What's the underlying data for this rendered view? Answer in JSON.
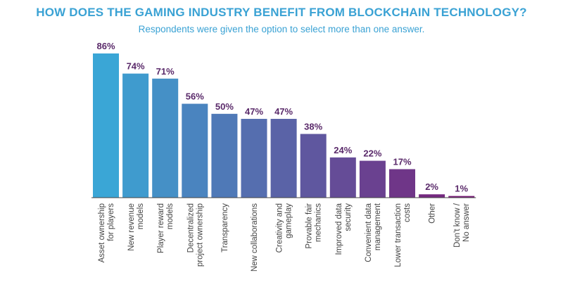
{
  "chart_data": {
    "type": "bar",
    "title": "HOW DOES THE GAMING INDUSTRY BENEFIT FROM BLOCKCHAIN TECHNOLOGY?",
    "subtitle": "Respondents were given the option to select more than one answer.",
    "categories": [
      [
        "Asset ownership",
        "for players"
      ],
      [
        "New revenue",
        "models"
      ],
      [
        "Player reward",
        "models"
      ],
      [
        "Decentralized",
        "project ownership"
      ],
      [
        "Transparency"
      ],
      [
        "New collaborations"
      ],
      [
        "Creativity and",
        "gameplay"
      ],
      [
        "Provable fair",
        "mechanics"
      ],
      [
        "Improved data",
        "security"
      ],
      [
        "Convenient data",
        "management"
      ],
      [
        "Lower transaction",
        "costs"
      ],
      [
        "Other"
      ],
      [
        "Don't know /",
        "No answer"
      ]
    ],
    "values": [
      86,
      74,
      71,
      56,
      50,
      47,
      47,
      38,
      24,
      22,
      17,
      2,
      1
    ],
    "value_labels": [
      "86%",
      "74%",
      "71%",
      "56%",
      "50%",
      "47%",
      "47%",
      "38%",
      "24%",
      "22%",
      "17%",
      "2%",
      "1%"
    ],
    "unit": "%",
    "ylim": [
      0,
      86
    ],
    "xlabel": "",
    "ylabel": "",
    "grid": false,
    "colors": {
      "gradient_start": "#3aa6d6",
      "gradient_end": "#7a1f78",
      "value_label": "#5a2a6a",
      "baseline": "#444444",
      "title": "#3aa2d4"
    }
  }
}
